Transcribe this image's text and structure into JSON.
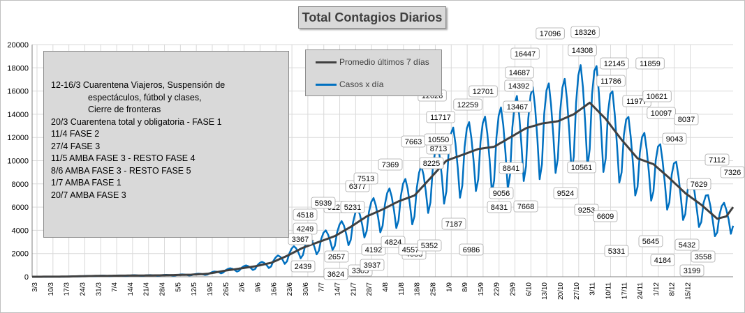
{
  "colors": {
    "avg": "#404040",
    "daily": "#0070c0",
    "grid": "#d9d9d9",
    "box": "#d9d9d9"
  },
  "legend": {
    "avg_label": "Promedio últimos 7 días",
    "daily_label": "Casos x día"
  },
  "notes": [
    {
      "text": "12-16/3  Cuarentena Viajeros, Suspensión de",
      "indent": false
    },
    {
      "text": "espectáculos, fútbol y clases,",
      "indent": true
    },
    {
      "text": "Cierre de fronteras",
      "indent": true
    },
    {
      "text": "20/3  Cuarentena total y obligatoria - FASE 1",
      "indent": false
    },
    {
      "text": "11/4  FASE 2",
      "indent": false
    },
    {
      "text": "27/4  FASE 3",
      "indent": false
    },
    {
      "text": "11/5  AMBA FASE 3 - RESTO FASE 4",
      "indent": false
    },
    {
      "text": "8/6  AMBA FASE 3 - RESTO FASE 5",
      "indent": false
    },
    {
      "text": "1/7  AMBA FASE 1",
      "indent": false
    },
    {
      "text": "20/7  AMBA FASE 3",
      "indent": false
    }
  ],
  "chart_data": {
    "type": "line",
    "title": "Total  Contagios  Diarios",
    "ylim": [
      0,
      20000
    ],
    "yticks": [
      "0",
      "2000",
      "4000",
      "6000",
      "8000",
      "10000",
      "12000",
      "14000",
      "16000",
      "18000",
      "20000"
    ],
    "xticks": [
      "3/3",
      "10/3",
      "17/3",
      "24/3",
      "31/3",
      "7/4",
      "14/4",
      "21/4",
      "28/4",
      "5/5",
      "12/5",
      "19/5",
      "26/5",
      "2/6",
      "9/6",
      "16/6",
      "23/6",
      "30/6",
      "7/7",
      "14/7",
      "21/7",
      "28/7",
      "4/8",
      "11/8",
      "18/8",
      "25/8",
      "1/9",
      "8/9",
      "15/9",
      "22/9",
      "29/9",
      "6/10",
      "13/10",
      "20/10",
      "27/10",
      "3/11",
      "10/11",
      "17/11",
      "24/11",
      "1/12",
      "8/12",
      "15/12"
    ],
    "grid": true,
    "legend_position": "top-center",
    "series": [
      {
        "name": "Promedio últimos 7 días",
        "points": [
          [
            0,
            0
          ],
          [
            14,
            10
          ],
          [
            28,
            70
          ],
          [
            42,
            100
          ],
          [
            56,
            120
          ],
          [
            63,
            150
          ],
          [
            70,
            180
          ],
          [
            77,
            250
          ],
          [
            84,
            500
          ],
          [
            91,
            700
          ],
          [
            98,
            900
          ],
          [
            105,
            1200
          ],
          [
            112,
            1800
          ],
          [
            119,
            2500
          ],
          [
            126,
            3000
          ],
          [
            133,
            3500
          ],
          [
            140,
            4300
          ],
          [
            147,
            5200
          ],
          [
            154,
            5800
          ],
          [
            161,
            6500
          ],
          [
            168,
            7000
          ],
          [
            175,
            8500
          ],
          [
            182,
            10000
          ],
          [
            189,
            10500
          ],
          [
            196,
            11000
          ],
          [
            203,
            11200
          ],
          [
            210,
            12000
          ],
          [
            217,
            12800
          ],
          [
            224,
            13200
          ],
          [
            231,
            13400
          ],
          [
            238,
            14000
          ],
          [
            245,
            15000
          ],
          [
            252,
            13600
          ],
          [
            259,
            11800
          ],
          [
            266,
            10200
          ],
          [
            273,
            9700
          ],
          [
            280,
            8500
          ],
          [
            287,
            7200
          ],
          [
            294,
            6200
          ],
          [
            301,
            5000
          ],
          [
            305,
            5200
          ],
          [
            308,
            6000
          ]
        ]
      },
      {
        "name": "Casos x día",
        "points": [
          [
            0,
            0
          ],
          [
            14,
            20
          ],
          [
            28,
            80
          ],
          [
            42,
            110
          ],
          [
            56,
            130
          ],
          [
            63,
            170
          ],
          [
            70,
            200
          ],
          [
            77,
            300
          ],
          [
            84,
            600
          ],
          [
            91,
            750
          ],
          [
            98,
            950
          ],
          [
            105,
            1400
          ],
          [
            112,
            2100
          ],
          [
            119,
            2700
          ],
          [
            126,
            3300
          ],
          [
            133,
            3500
          ],
          [
            140,
            5000
          ],
          [
            147,
            5400
          ],
          [
            154,
            6000
          ],
          [
            161,
            7300
          ],
          [
            168,
            8000
          ],
          [
            175,
            9000
          ],
          [
            182,
            12000
          ],
          [
            189,
            11700
          ],
          [
            196,
            10500
          ],
          [
            203,
            13200
          ],
          [
            210,
            14700
          ],
          [
            217,
            14500
          ],
          [
            224,
            16000
          ],
          [
            231,
            13500
          ],
          [
            238,
            16500
          ],
          [
            245,
            18300
          ],
          [
            252,
            15000
          ],
          [
            259,
            11800
          ],
          [
            266,
            10500
          ],
          [
            273,
            10000
          ],
          [
            280,
            9000
          ],
          [
            287,
            7800
          ],
          [
            294,
            6000
          ],
          [
            301,
            3500
          ],
          [
            305,
            5500
          ],
          [
            308,
            7326
          ]
        ]
      }
    ],
    "annotations": [
      "4518",
      "4249",
      "3367",
      "2439",
      "6127",
      "5939",
      "6377",
      "2657",
      "3624",
      "3305",
      "5231",
      "4192",
      "3937",
      "7513",
      "7369",
      "4824",
      "4688",
      "7663",
      "8225",
      "8713",
      "10550",
      "4557",
      "5352",
      "7187",
      "11717",
      "12026",
      "12259",
      "6986",
      "12701",
      "9056",
      "14392",
      "13467",
      "8431",
      "8841",
      "14687",
      "16447",
      "7668",
      "17096",
      "9524",
      "18326",
      "10561",
      "14308",
      "9253",
      "12145",
      "11786",
      "6609",
      "5331",
      "11977",
      "11859",
      "10621",
      "10097",
      "5645",
      "4184",
      "9043",
      "8037",
      "5432",
      "7629",
      "3199",
      "7112",
      "3558",
      "7326"
    ]
  }
}
